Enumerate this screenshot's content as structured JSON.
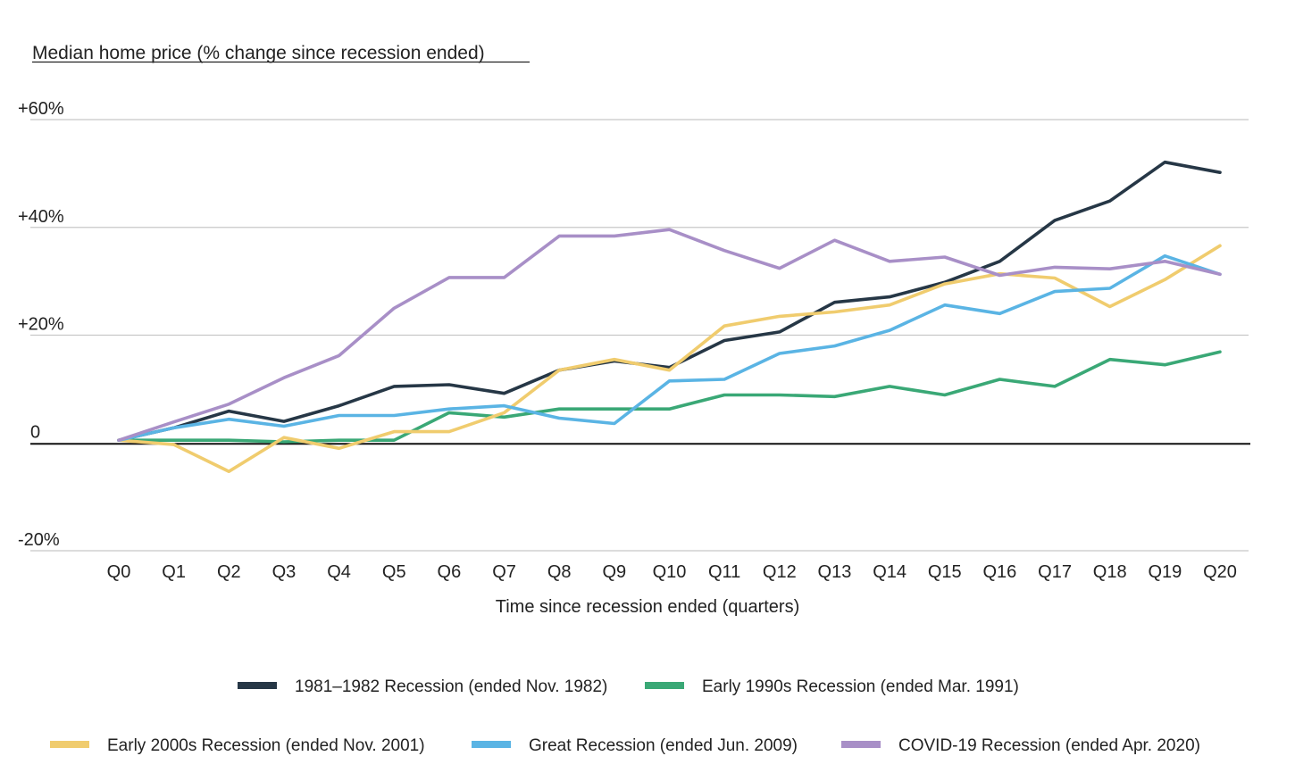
{
  "chart_data": {
    "type": "line",
    "title": "Median home price (% change since recession ended)",
    "xlabel": "Time since recession ended (quarters)",
    "ylabel": "",
    "ylim": [
      -20,
      60
    ],
    "grid": true,
    "legend_position": "bottom",
    "y_ticks": [
      {
        "value": 60,
        "label": "+60%"
      },
      {
        "value": 40,
        "label": "+40%"
      },
      {
        "value": 20,
        "label": "+20%"
      },
      {
        "value": 0,
        "label": "0"
      },
      {
        "value": -20,
        "label": "-20%"
      }
    ],
    "x": [
      "Q0",
      "Q1",
      "Q2",
      "Q3",
      "Q4",
      "Q5",
      "Q6",
      "Q7",
      "Q8",
      "Q9",
      "Q10",
      "Q11",
      "Q12",
      "Q13",
      "Q14",
      "Q15",
      "Q16",
      "Q17",
      "Q18",
      "Q19",
      "Q20"
    ],
    "series": [
      {
        "name": "1981–1982 Recession (ended Nov. 1982)",
        "color": "#263746",
        "values": [
          0.5,
          2.8,
          5.9,
          4.0,
          6.9,
          10.5,
          10.8,
          9.2,
          13.5,
          15.2,
          14.0,
          19.0,
          20.6,
          26.1,
          27.1,
          29.8,
          33.7,
          41.3,
          44.9,
          52.1,
          50.2
        ]
      },
      {
        "name": "Early 1990s Recession (ended Mar. 1991)",
        "color": "#3aa876",
        "values": [
          0.5,
          0.5,
          0.5,
          0.2,
          0.5,
          0.5,
          5.6,
          4.8,
          6.3,
          6.3,
          6.3,
          8.9,
          8.9,
          8.6,
          10.5,
          8.9,
          11.8,
          10.5,
          15.5,
          14.5,
          16.9
        ]
      },
      {
        "name": "Early 2000s Recession (ended Nov. 2001)",
        "color": "#f0cc6e",
        "values": [
          0.5,
          -0.3,
          -5.3,
          1.0,
          -1.0,
          2.1,
          2.1,
          5.6,
          13.5,
          15.5,
          13.5,
          21.7,
          23.5,
          24.3,
          25.6,
          29.5,
          31.4,
          30.6,
          25.3,
          30.3,
          36.6
        ]
      },
      {
        "name": "Great Recession (ended Jun. 2009)",
        "color": "#5ab4e4",
        "values": [
          0.5,
          2.8,
          4.4,
          3.1,
          5.1,
          5.1,
          6.3,
          6.9,
          4.6,
          3.6,
          11.5,
          11.8,
          16.6,
          18.0,
          20.9,
          25.6,
          24.0,
          28.1,
          28.7,
          34.7,
          31.3
        ]
      },
      {
        "name": "COVID-19 Recession (ended Apr. 2020)",
        "color": "#a88fc7",
        "values": [
          0.5,
          3.9,
          7.2,
          12.1,
          16.2,
          25.0,
          30.7,
          30.7,
          38.4,
          38.4,
          39.6,
          35.7,
          32.4,
          37.6,
          33.7,
          34.5,
          31.1,
          32.6,
          32.3,
          33.7,
          31.3
        ]
      }
    ]
  }
}
